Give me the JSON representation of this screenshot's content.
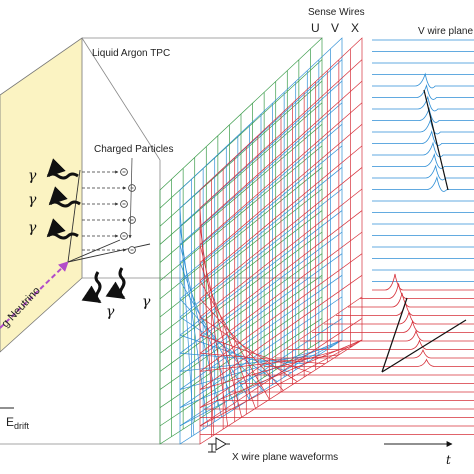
{
  "labels": {
    "tpc": "Liquid Argon TPC",
    "sense_wires": "Sense Wires",
    "wire_u": "U",
    "wire_v": "V",
    "wire_x": "X",
    "v_plane": "V wire plane",
    "charged_particles": "Charged Particles",
    "neutrino": "g Neutrino",
    "x_plane": "X wire plane waveforms",
    "gamma": "γ",
    "edrift_main": "E",
    "edrift_sub": "drift",
    "time_axis": "t"
  },
  "colors": {
    "u_wires": "#3b9c4a",
    "v_wires": "#2f8fd6",
    "x_wires": "#d6303a",
    "cathode_fill": "#fbf3c2",
    "neutrino": "#b24cc9"
  },
  "icons": [
    "electron-icon",
    "photon-wavy-arrow-icon",
    "preamplifier-icon"
  ]
}
